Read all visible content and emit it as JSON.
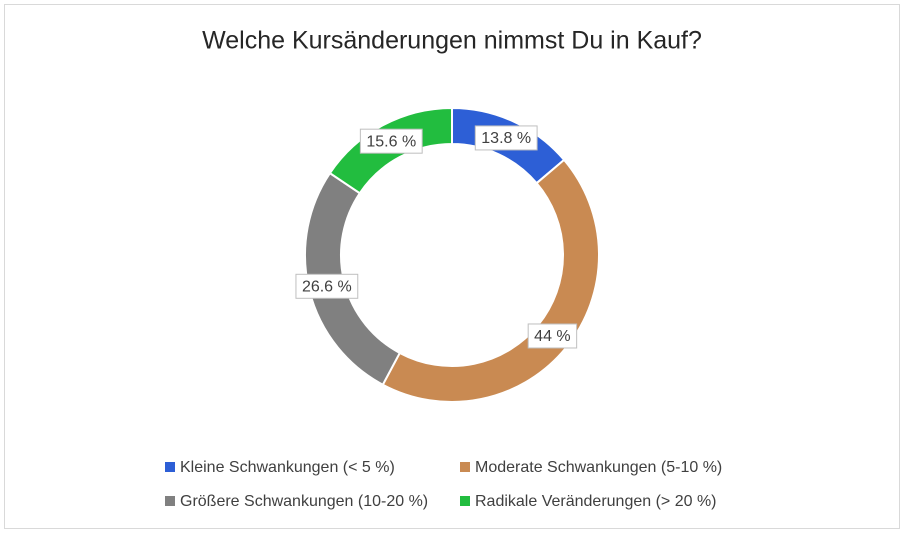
{
  "chart_data": {
    "type": "donut",
    "title": "Welche Kursänderungen nimmst Du in Kauf?",
    "categories": [
      "Kleine Schwankungen (< 5 %)",
      "Moderate Schwankungen (5-10 %)",
      "Größere Schwankungen (10-20 %)",
      "Radikale Veränderungen (> 20 %)"
    ],
    "values": [
      13.8,
      44,
      26.6,
      15.6
    ],
    "value_labels": [
      "13.8 %",
      "44 %",
      "26.6 %",
      "15.6 %"
    ],
    "colors": [
      "#2d5fd6",
      "#c98a52",
      "#808080",
      "#22bd3f"
    ]
  }
}
